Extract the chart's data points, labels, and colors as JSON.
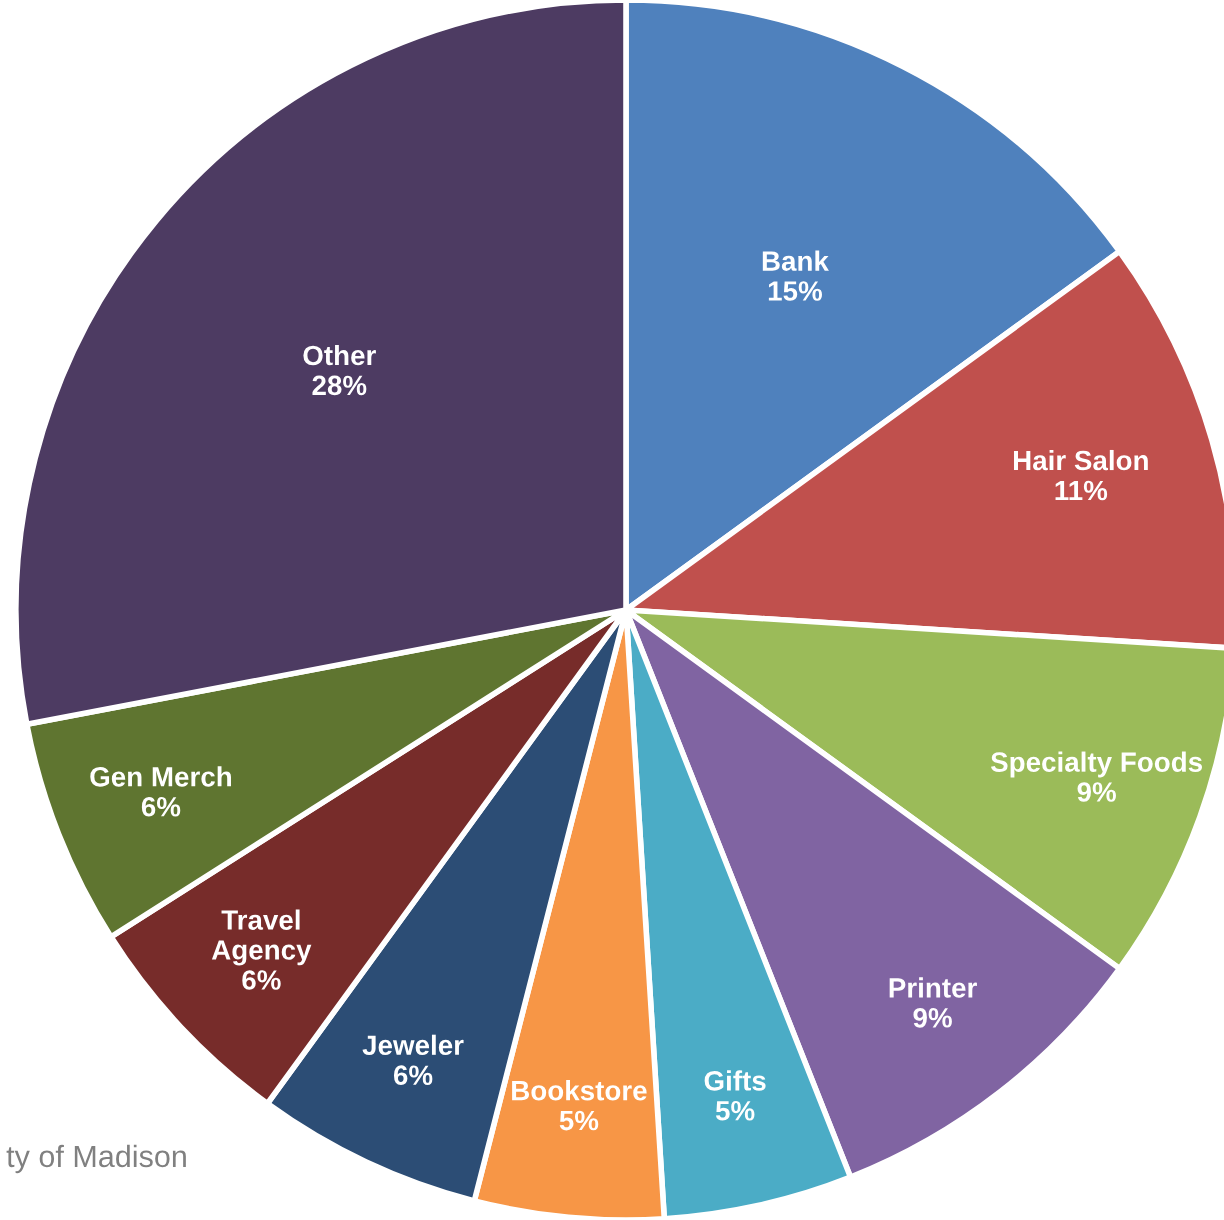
{
  "chart_data": {
    "type": "pie",
    "categories": [
      "Bank",
      "Hair Salon",
      "Specialty Foods",
      "Printer",
      "Gifts",
      "Bookstore",
      "Jeweler",
      "Travel\nAgency",
      "Gen Merch",
      "Other"
    ],
    "values": [
      15,
      11,
      9,
      9,
      5,
      5,
      6,
      6,
      6,
      28
    ],
    "colors": [
      "#4f81bd",
      "#c0504d",
      "#9bbb59",
      "#8064a2",
      "#4bacc6",
      "#f79646",
      "#2c4d75",
      "#772c2a",
      "#5f7530",
      "#4d3b62"
    ],
    "value_labels": [
      "15%",
      "11%",
      "9%",
      "9%",
      "5%",
      "5%",
      "6%",
      "6%",
      "6%",
      "28%"
    ],
    "annotations": [
      "ty of Madison"
    ]
  }
}
